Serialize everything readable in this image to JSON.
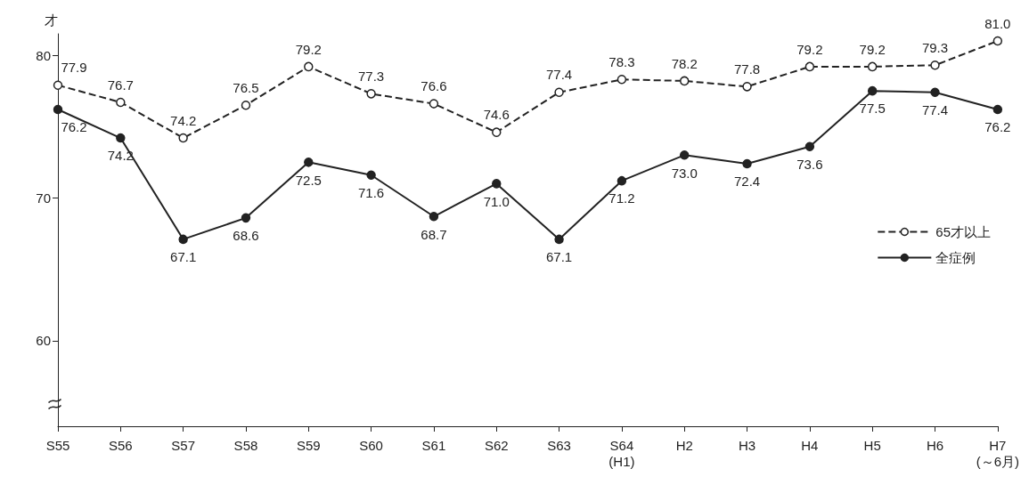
{
  "chart_data": {
    "type": "line",
    "ylabel": "才",
    "categories": [
      "S55",
      "S56",
      "S57",
      "S58",
      "S59",
      "S60",
      "S61",
      "S62",
      "S63",
      "S64\n(H1)",
      "H2",
      "H3",
      "H4",
      "H5",
      "H6",
      "H7\n(～6月)"
    ],
    "series": [
      {
        "name": "65才以上",
        "color": "#222222",
        "line_style": "dashed",
        "values": [
          77.9,
          76.7,
          74.2,
          76.5,
          79.2,
          77.3,
          76.6,
          74.6,
          77.4,
          78.3,
          78.2,
          77.8,
          79.2,
          79.2,
          79.3,
          81.0
        ],
        "value_labels": [
          "77.9",
          "76.7",
          "74.2",
          "76.5",
          "79.2",
          "77.3",
          "76.6",
          "74.6",
          "77.4",
          "78.3",
          "78.2",
          "77.8",
          "79.2",
          "79.2",
          "79.3",
          "81.0"
        ]
      },
      {
        "name": "全症例",
        "color": "#222222",
        "line_style": "solid",
        "values": [
          76.2,
          74.2,
          67.1,
          68.6,
          72.5,
          71.6,
          68.7,
          71.0,
          67.1,
          71.2,
          73.0,
          72.4,
          73.6,
          77.5,
          77.4,
          76.2
        ],
        "value_labels": [
          "76.2",
          "74.2",
          "67.1",
          "68.6",
          "72.5",
          "71.6",
          "68.7",
          "71.0",
          "67.1",
          "71.2",
          "73.0",
          "72.4",
          "73.6",
          "77.5",
          "77.4",
          "76.2"
        ]
      }
    ],
    "marker": "circle",
    "ylim": [
      54,
      81.5
    ],
    "yticks": [
      60,
      70,
      80
    ],
    "legend": "right",
    "grid": false
  }
}
